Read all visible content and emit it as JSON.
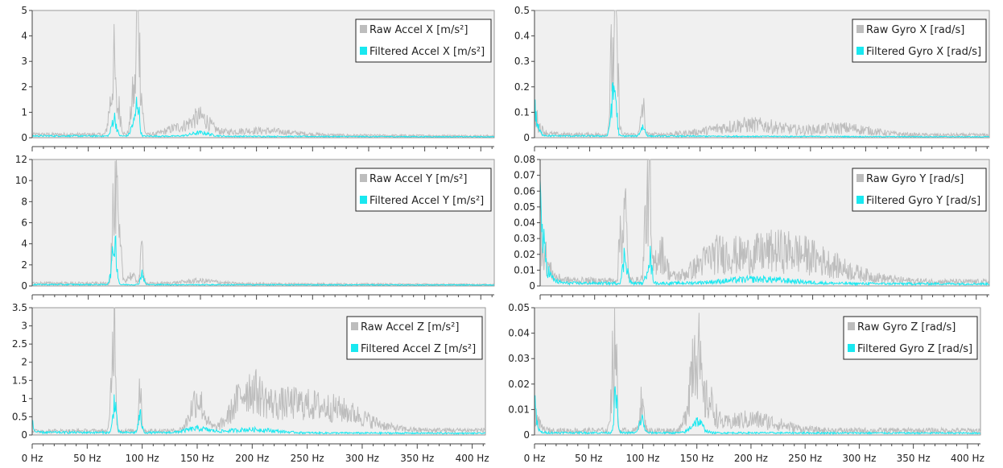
{
  "colors": {
    "raw": "#bdbdbd",
    "filtered": "#19e8f0",
    "plot_bg": "#f0f0f0",
    "axis": "#444444"
  },
  "chart_data": [
    {
      "type": "line",
      "id": "accel-x",
      "legend_position": "top-right",
      "grid": false,
      "xlim": [
        0,
        412
      ],
      "ylim": [
        0,
        5
      ],
      "yticks": [
        0,
        1,
        2,
        3,
        4,
        5
      ],
      "ytick_labels": [
        "0",
        "1",
        "2",
        "3",
        "4",
        "5"
      ],
      "xticks": [],
      "xtick_labels": [],
      "series": [
        {
          "name": "Raw Accel X [m/s²]",
          "color": "raw",
          "profile": {
            "base": 0.15,
            "tail": 0.08,
            "noise": 0.6,
            "peaks": [
              [
                73,
                2.6,
                1.2
              ],
              [
                70,
                1.4,
                2
              ],
              [
                77,
                1.2,
                2
              ],
              [
                90,
                1.7,
                2
              ],
              [
                94,
                4.3,
                1.2
              ],
              [
                96,
                2.4,
                2
              ],
              [
                150,
                0.7,
                8
              ],
              [
                130,
                0.3,
                10
              ],
              [
                200,
                0.2,
                30
              ]
            ]
          }
        },
        {
          "name": "Filtered Accel X [m/s²]",
          "color": "filtered",
          "profile": {
            "base": 0.08,
            "tail": 0.04,
            "noise": 0.5,
            "peaks": [
              [
                73,
                0.8,
                2
              ],
              [
                94,
                1.5,
                1.5
              ],
              [
                90,
                0.5,
                2
              ],
              [
                150,
                0.15,
                8
              ]
            ]
          }
        }
      ]
    },
    {
      "type": "line",
      "id": "gyro-x",
      "legend_position": "top-right",
      "grid": false,
      "xlim": [
        0,
        412
      ],
      "ylim": [
        0,
        0.5
      ],
      "yticks": [
        0,
        0.1,
        0.2,
        0.3,
        0.4,
        0.5
      ],
      "ytick_labels": [
        "0",
        "0.1",
        "0.2",
        "0.3",
        "0.4",
        "0.5"
      ],
      "xticks": [],
      "xtick_labels": [],
      "series": [
        {
          "name": "Raw Gyro X [rad/s]",
          "color": "raw",
          "profile": {
            "base": 0.015,
            "tail": 0.012,
            "noise": 0.7,
            "low": [
              0.12,
              4
            ],
            "peaks": [
              [
                73,
                0.46,
                1
              ],
              [
                70,
                0.33,
                1.5
              ],
              [
                75,
                0.25,
                1.5
              ],
              [
                98,
                0.13,
                1.5
              ],
              [
                195,
                0.045,
                30
              ],
              [
                280,
                0.03,
                25
              ]
            ]
          }
        },
        {
          "name": "Filtered Gyro X [rad/s]",
          "color": "filtered",
          "profile": {
            "base": 0.008,
            "tail": 0.004,
            "noise": 0.5,
            "low": [
              0.14,
              2.5
            ],
            "peaks": [
              [
                73,
                0.18,
                1.5
              ],
              [
                70,
                0.12,
                1.5
              ],
              [
                98,
                0.04,
                2
              ]
            ]
          }
        }
      ]
    },
    {
      "type": "line",
      "id": "accel-y",
      "legend_position": "top-right",
      "grid": false,
      "xlim": [
        0,
        412
      ],
      "ylim": [
        0,
        12
      ],
      "yticks": [
        0,
        2,
        4,
        6,
        8,
        10,
        12
      ],
      "ytick_labels": [
        "0",
        "2",
        "4",
        "6",
        "8",
        "10",
        "12"
      ],
      "xticks": [],
      "xtick_labels": [],
      "series": [
        {
          "name": "Raw Accel Y [m/s²]",
          "color": "raw",
          "profile": {
            "base": 0.3,
            "tail": 0.15,
            "noise": 0.6,
            "peaks": [
              [
                75,
                10.7,
                1
              ],
              [
                72,
                7.5,
                1.2
              ],
              [
                78,
                4,
                1.5
              ],
              [
                98,
                3.8,
                1.2
              ],
              [
                88,
                0.8,
                4
              ],
              [
                150,
                0.3,
                15
              ]
            ]
          }
        },
        {
          "name": "Filtered Accel Y [m/s²]",
          "color": "filtered",
          "profile": {
            "base": 0.15,
            "tail": 0.1,
            "noise": 0.5,
            "peaks": [
              [
                74,
                3.3,
                1.5
              ],
              [
                72,
                2,
                2
              ],
              [
                98,
                1.2,
                1.5
              ]
            ]
          }
        }
      ]
    },
    {
      "type": "line",
      "id": "gyro-y",
      "legend_position": "top-right",
      "grid": false,
      "xlim": [
        0,
        412
      ],
      "ylim": [
        0,
        0.08
      ],
      "yticks": [
        0,
        0.01,
        0.02,
        0.03,
        0.04,
        0.05,
        0.06,
        0.07,
        0.08
      ],
      "ytick_labels": [
        "0",
        "0.01",
        "0.02",
        "0.03",
        "0.04",
        "0.05",
        "0.06",
        "0.07",
        "0.08"
      ],
      "xticks": [],
      "xtick_labels": [],
      "series": [
        {
          "name": "Raw Gyro Y [rad/s]",
          "color": "raw",
          "profile": {
            "base": 0.004,
            "tail": 0.003,
            "noise": 0.7,
            "low": [
              0.05,
              5
            ],
            "peaks": [
              [
                78,
                0.048,
                1.5
              ],
              [
                74,
                0.04,
                1.5
              ],
              [
                100,
                0.075,
                1.2
              ],
              [
                97,
                0.045,
                1.5
              ],
              [
                110,
                0.02,
                5
              ],
              [
                220,
                0.022,
                45
              ],
              [
                160,
                0.01,
                15
              ]
            ]
          }
        },
        {
          "name": "Filtered Gyro Y [rad/s]",
          "color": "filtered",
          "profile": {
            "base": 0.002,
            "tail": 0.0015,
            "noise": 0.6,
            "low": [
              0.06,
              4
            ],
            "peaks": [
              [
                78,
                0.02,
                2
              ],
              [
                100,
                0.02,
                2
              ],
              [
                200,
                0.003,
                30
              ]
            ]
          }
        }
      ]
    },
    {
      "type": "line",
      "id": "accel-z",
      "legend_position": "top-right",
      "grid": false,
      "xlim": [
        0,
        412
      ],
      "ylim": [
        0,
        3.5
      ],
      "yticks": [
        0,
        0.5,
        1,
        1.5,
        2,
        2.5,
        3,
        3.5
      ],
      "ytick_labels": [
        "0",
        "0.5",
        "1",
        "1.5",
        "2",
        "2.5",
        "3",
        "3.5"
      ],
      "xticks": [
        0,
        50,
        100,
        150,
        200,
        250,
        300,
        350,
        400
      ],
      "xtick_labels": [
        "0 Hz",
        "50 Hz",
        "100 Hz",
        "150 Hz",
        "200 Hz",
        "250 Hz",
        "300 Hz",
        "350 Hz",
        "400 Hz"
      ],
      "series": [
        {
          "name": "Raw Accel Z [m/s²]",
          "color": "raw",
          "profile": {
            "base": 0.12,
            "tail": 0.15,
            "noise": 0.6,
            "peaks": [
              [
                75,
                3.2,
                1
              ],
              [
                73,
                2.1,
                1.5
              ],
              [
                98,
                1.5,
                1.2
              ],
              [
                150,
                1.0,
                6
              ],
              [
                195,
                1.0,
                12
              ],
              [
                230,
                0.75,
                25
              ],
              [
                280,
                0.55,
                25
              ]
            ]
          }
        },
        {
          "name": "Filtered Accel Z [m/s²]",
          "color": "filtered",
          "profile": {
            "base": 0.08,
            "tail": 0.05,
            "noise": 0.5,
            "low": [
              0.5,
              1
            ],
            "peaks": [
              [
                75,
                1.0,
                1.5
              ],
              [
                98,
                0.5,
                1.5
              ],
              [
                150,
                0.12,
                10
              ],
              [
                200,
                0.1,
                20
              ]
            ]
          }
        }
      ]
    },
    {
      "type": "line",
      "id": "gyro-z",
      "legend_position": "top-right",
      "grid": false,
      "xlim": [
        0,
        412
      ],
      "ylim": [
        0,
        0.05
      ],
      "yticks": [
        0,
        0.01,
        0.02,
        0.03,
        0.04,
        0.05
      ],
      "ytick_labels": [
        "0",
        "0.01",
        "0.02",
        "0.03",
        "0.04",
        "0.05"
      ],
      "xticks": [
        0,
        50,
        100,
        150,
        200,
        250,
        300,
        350,
        400
      ],
      "xtick_labels": [
        "0 Hz",
        "50 Hz",
        "100 Hz",
        "150 Hz",
        "200 Hz",
        "250 Hz",
        "300 Hz",
        "350 Hz",
        "400 Hz"
      ],
      "series": [
        {
          "name": "Raw Gyro Z [rad/s]",
          "color": "raw",
          "profile": {
            "base": 0.002,
            "tail": 0.002,
            "noise": 0.7,
            "low": [
              0.012,
              3
            ],
            "peaks": [
              [
                75,
                0.043,
                1
              ],
              [
                72,
                0.03,
                1.5
              ],
              [
                99,
                0.012,
                2
              ],
              [
                150,
                0.029,
                3
              ],
              [
                145,
                0.02,
                4
              ],
              [
                160,
                0.012,
                6
              ],
              [
                200,
                0.005,
                25
              ]
            ]
          }
        },
        {
          "name": "Filtered Gyro Z [rad/s]",
          "color": "filtered",
          "profile": {
            "base": 0.001,
            "tail": 0.0008,
            "noise": 0.5,
            "low": [
              0.019,
              1.5
            ],
            "peaks": [
              [
                75,
                0.016,
                1.5
              ],
              [
                99,
                0.006,
                2
              ],
              [
                150,
                0.005,
                5
              ]
            ]
          }
        }
      ]
    }
  ]
}
